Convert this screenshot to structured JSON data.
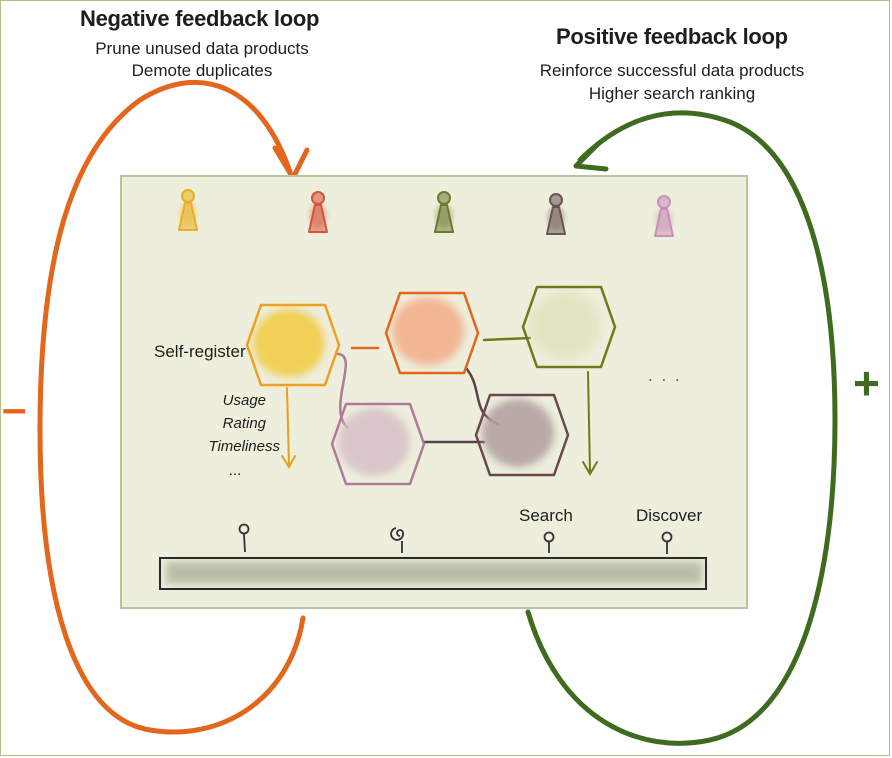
{
  "negative_loop": {
    "title": "Negative feedback loop",
    "line1": "Prune unused data products",
    "line2": "Demote duplicates",
    "sign": "–",
    "color": "#e2661c"
  },
  "positive_loop": {
    "title": "Positive feedback loop",
    "line1": "Reinforce successful data products",
    "line2": "Higher search ranking",
    "sign": "+",
    "color": "#3f6b1f"
  },
  "panel": {
    "background": "#eeeedc",
    "border": "#b8c4a0"
  },
  "users": [
    {
      "icon": "person-icon",
      "color": "#e8b020"
    },
    {
      "icon": "person-icon",
      "color": "#d4533a"
    },
    {
      "icon": "person-icon",
      "color": "#6e7a30"
    },
    {
      "icon": "person-icon",
      "color": "#6a5550"
    },
    {
      "icon": "person-icon",
      "color": "#c890b8"
    }
  ],
  "data_products": [
    {
      "icon": "hexagon-icon",
      "stroke": "#f0a020",
      "fill": "#f2cc4a"
    },
    {
      "icon": "hexagon-icon",
      "stroke": "#e2661c",
      "fill": "#f3b08c"
    },
    {
      "icon": "hexagon-icon",
      "stroke": "#6e7a1a",
      "fill": "#e2e4c2"
    },
    {
      "icon": "hexagon-icon",
      "stroke": "#b07a9a",
      "fill": "#d8c2c8"
    },
    {
      "icon": "hexagon-icon",
      "stroke": "#6a4850",
      "fill": "#b4a2a2"
    }
  ],
  "labels": {
    "self_register": "Self-register",
    "metrics": [
      "Usage",
      "Rating",
      "Timeliness",
      "..."
    ],
    "more": ". . .",
    "search": "Search",
    "discover": "Discover"
  }
}
